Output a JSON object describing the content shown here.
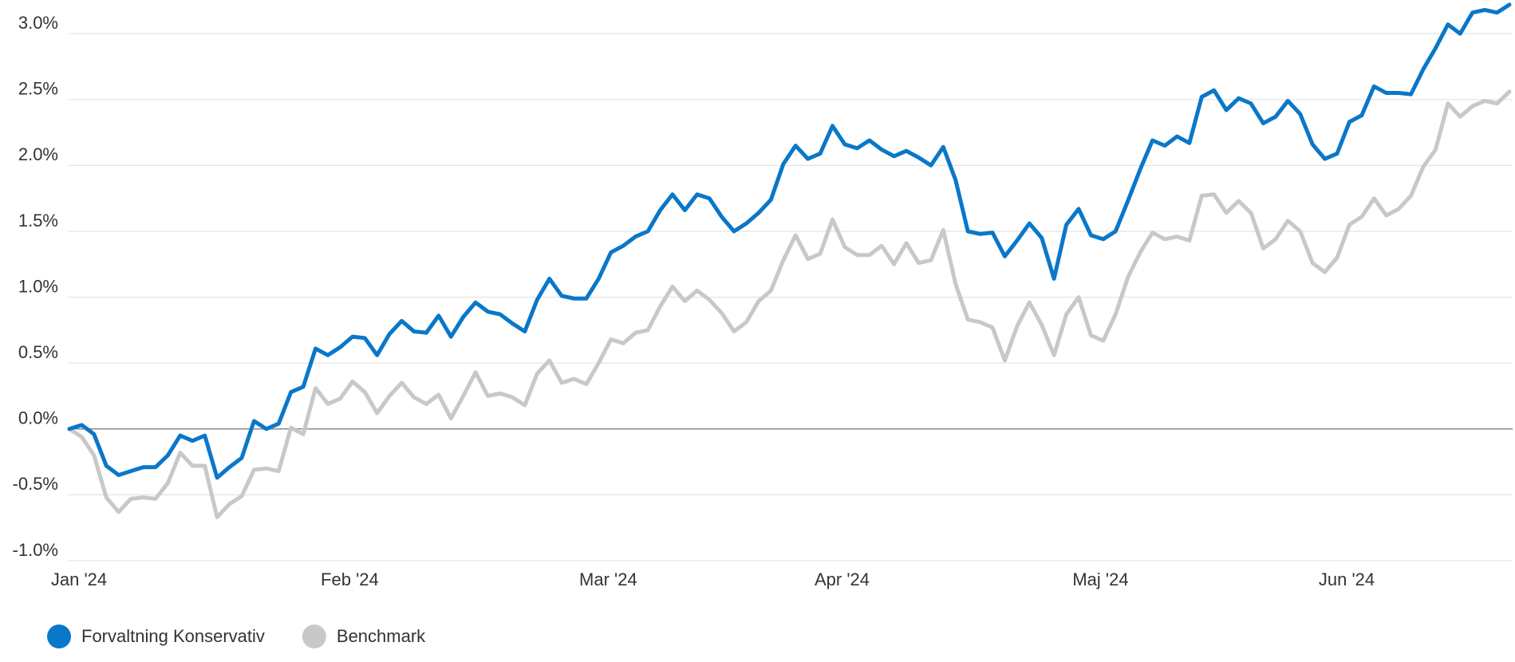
{
  "chart_data": {
    "type": "line",
    "categories": [
      "Jan '24",
      null,
      null,
      null,
      null,
      null,
      null,
      null,
      null,
      null,
      null,
      null,
      null,
      null,
      null,
      null,
      null,
      null,
      null,
      null,
      null,
      null,
      "Feb '24",
      null,
      null,
      null,
      null,
      null,
      null,
      null,
      null,
      null,
      null,
      null,
      null,
      null,
      null,
      null,
      null,
      null,
      null,
      null,
      null,
      "Mar '24",
      null,
      null,
      null,
      null,
      null,
      null,
      null,
      null,
      null,
      null,
      null,
      null,
      null,
      null,
      null,
      null,
      null,
      null,
      "Apr '24",
      null,
      null,
      null,
      null,
      null,
      null,
      null,
      null,
      null,
      null,
      null,
      null,
      null,
      null,
      null,
      null,
      null,
      null,
      null,
      null,
      "Maj '24",
      null,
      null,
      null,
      null,
      null,
      null,
      null,
      null,
      null,
      null,
      null,
      null,
      null,
      null,
      null,
      null,
      null,
      null,
      null,
      "Jun '24",
      null,
      null,
      null,
      null,
      null,
      null,
      null,
      null,
      null,
      null,
      null,
      null,
      null,
      null
    ],
    "series": [
      {
        "name": "Benchmark",
        "color": "#c8c8c8",
        "values": [
          0.0,
          -0.06,
          -0.2,
          -0.52,
          -0.63,
          -0.53,
          -0.52,
          -0.53,
          -0.41,
          -0.18,
          -0.28,
          -0.28,
          -0.67,
          -0.57,
          -0.51,
          -0.31,
          -0.3,
          -0.32,
          0.01,
          -0.04,
          0.31,
          0.19,
          0.23,
          0.36,
          0.28,
          0.12,
          0.25,
          0.35,
          0.24,
          0.19,
          0.26,
          0.08,
          0.25,
          0.43,
          0.25,
          0.27,
          0.24,
          0.18,
          0.42,
          0.52,
          0.35,
          0.38,
          0.34,
          0.5,
          0.68,
          0.65,
          0.73,
          0.75,
          0.93,
          1.08,
          0.97,
          1.05,
          0.98,
          0.88,
          0.74,
          0.81,
          0.97,
          1.05,
          1.28,
          1.47,
          1.29,
          1.33,
          1.59,
          1.38,
          1.32,
          1.32,
          1.39,
          1.25,
          1.41,
          1.26,
          1.28,
          1.51,
          1.1,
          0.83,
          0.81,
          0.77,
          0.52,
          0.78,
          0.96,
          0.79,
          0.56,
          0.87,
          1.0,
          0.71,
          0.67,
          0.87,
          1.15,
          1.34,
          1.49,
          1.44,
          1.46,
          1.43,
          1.77,
          1.78,
          1.64,
          1.73,
          1.64,
          1.37,
          1.44,
          1.58,
          1.5,
          1.26,
          1.19,
          1.3,
          1.55,
          1.61,
          1.75,
          1.62,
          1.67,
          1.77,
          1.99,
          2.12,
          2.47,
          2.37,
          2.45,
          2.49,
          2.47,
          2.56
        ]
      },
      {
        "name": "Forvaltning Konservativ",
        "color": "#0a77c9",
        "values": [
          0.0,
          0.03,
          -0.04,
          -0.28,
          -0.35,
          -0.32,
          -0.29,
          -0.29,
          -0.2,
          -0.05,
          -0.09,
          -0.05,
          -0.37,
          -0.29,
          -0.22,
          0.06,
          0.0,
          0.04,
          0.28,
          0.32,
          0.61,
          0.56,
          0.62,
          0.7,
          0.69,
          0.56,
          0.72,
          0.82,
          0.74,
          0.73,
          0.86,
          0.7,
          0.85,
          0.96,
          0.89,
          0.87,
          0.8,
          0.74,
          0.98,
          1.14,
          1.01,
          0.99,
          0.99,
          1.14,
          1.34,
          1.39,
          1.46,
          1.5,
          1.66,
          1.78,
          1.66,
          1.78,
          1.75,
          1.61,
          1.5,
          1.56,
          1.64,
          1.74,
          2.01,
          2.15,
          2.05,
          2.09,
          2.3,
          2.16,
          2.13,
          2.19,
          2.12,
          2.07,
          2.11,
          2.06,
          2.0,
          2.14,
          1.89,
          1.5,
          1.48,
          1.49,
          1.31,
          1.43,
          1.56,
          1.45,
          1.14,
          1.55,
          1.67,
          1.47,
          1.44,
          1.5,
          1.73,
          1.97,
          2.19,
          2.15,
          2.22,
          2.17,
          2.52,
          2.57,
          2.42,
          2.51,
          2.47,
          2.32,
          2.37,
          2.49,
          2.39,
          2.16,
          2.05,
          2.09,
          2.33,
          2.38,
          2.6,
          2.55,
          2.55,
          2.54,
          2.73,
          2.89,
          3.07,
          3.0,
          3.16,
          3.18,
          3.16,
          3.22
        ]
      }
    ],
    "legend_order": [
      1,
      0
    ],
    "ylim": [
      -1.0,
      3.25
    ],
    "yticks": [
      {
        "value": -1.0,
        "label": "-1.0%"
      },
      {
        "value": -0.5,
        "label": "-0.5%"
      },
      {
        "value": 0,
        "label": "0.0%"
      },
      {
        "value": 0.5,
        "label": "0.5%"
      },
      {
        "value": 1.0,
        "label": "1.0%"
      },
      {
        "value": 1.5,
        "label": "1.5%"
      },
      {
        "value": 2.0,
        "label": "2.0%"
      },
      {
        "value": 2.5,
        "label": "2.5%"
      },
      {
        "value": 3.0,
        "label": "3.0%"
      }
    ],
    "grid": true
  }
}
